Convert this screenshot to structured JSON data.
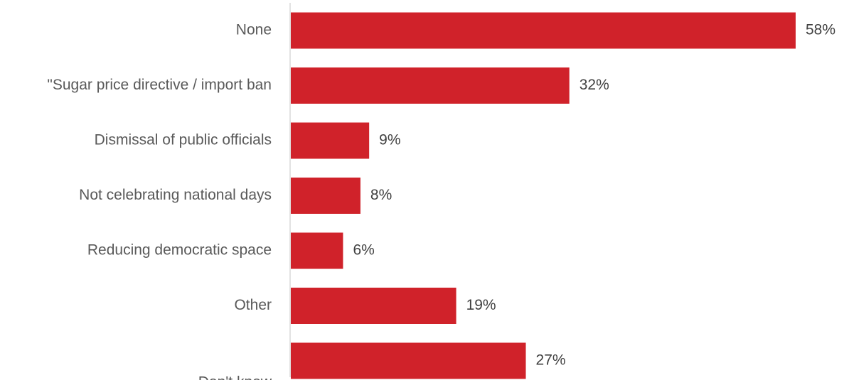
{
  "chart_data": {
    "type": "bar",
    "orientation": "horizontal",
    "categories": [
      "None",
      "\"Sugar price directive / import ban",
      "Dismissal of public officials",
      "Not celebrating national days",
      "Reducing democratic space",
      "Other",
      "Don't know"
    ],
    "values": [
      58,
      32,
      9,
      8,
      6,
      19,
      27
    ],
    "value_labels": [
      "58%",
      "32%",
      "9%",
      "8%",
      "6%",
      "19%",
      "27%"
    ],
    "unit": "%",
    "xlim": [
      0,
      58
    ],
    "bar_color": "#d0222a",
    "axis_color": "#d9d9d9",
    "grid": false,
    "legend": "none"
  }
}
